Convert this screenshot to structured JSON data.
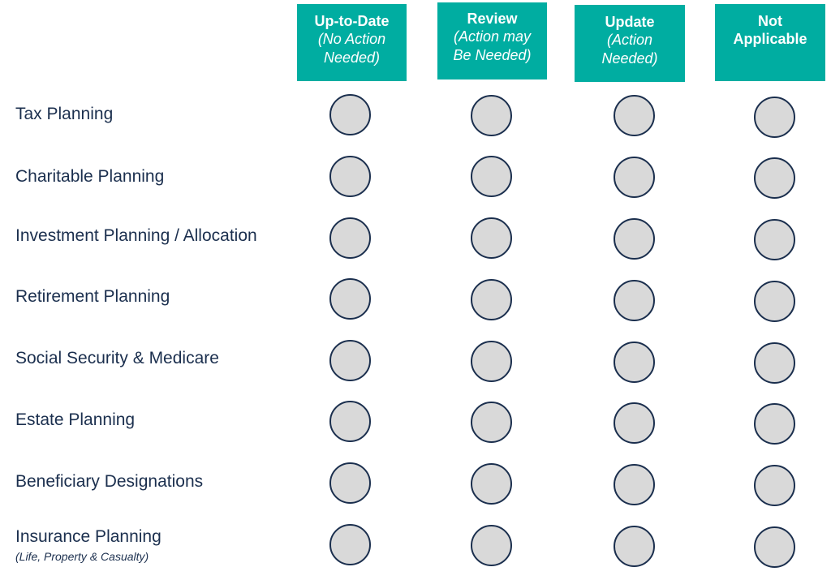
{
  "columns": [
    {
      "title": "Up-to-Date",
      "subtitle_lines": [
        "(No Action",
        "Needed)"
      ]
    },
    {
      "title": "Review",
      "subtitle_lines": [
        "(Action may",
        "Be Needed)"
      ]
    },
    {
      "title": "Update",
      "subtitle_lines": [
        "(Action",
        "Needed)"
      ]
    },
    {
      "title_lines": [
        "Not",
        "Applicable"
      ]
    }
  ],
  "rows": [
    {
      "label": "Tax Planning"
    },
    {
      "label": "Charitable Planning"
    },
    {
      "label": "Investment Planning / Allocation"
    },
    {
      "label": "Retirement Planning"
    },
    {
      "label": "Social Security & Medicare"
    },
    {
      "label": "Estate Planning"
    },
    {
      "label": "Beneficiary Designations"
    },
    {
      "label": "Insurance Planning",
      "sublabel": "(Life, Property & Casualty)"
    }
  ],
  "colors": {
    "header_bg": "#00ADA1",
    "header_text": "#ffffff",
    "label_text": "#1B2F4E",
    "radio_fill": "#D9D9D9",
    "radio_border": "#1B2F4E"
  }
}
